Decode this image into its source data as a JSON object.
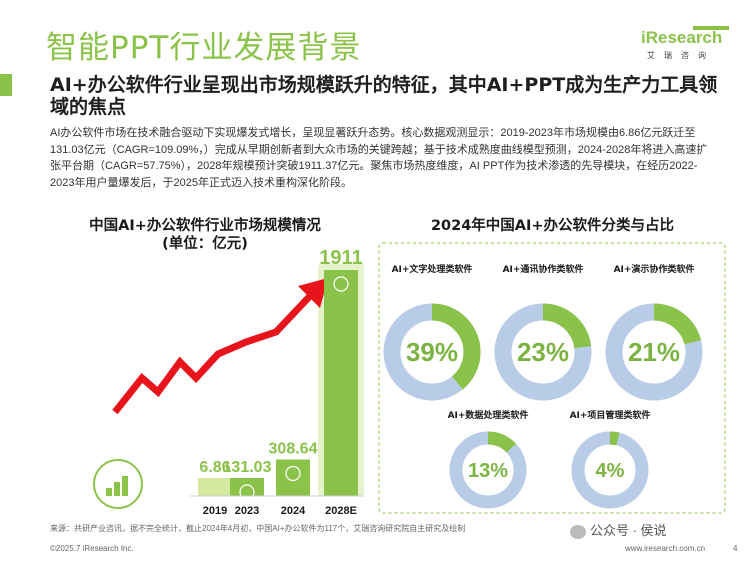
{
  "header": {
    "title": "智能PPT行业发展背景",
    "logo_name": "iResearch",
    "logo_sub": "艾瑞咨询"
  },
  "headline": "AI+办公软件行业呈现出市场规模跃升的特征，其中AI+PPT成为生产力工具领域的焦点",
  "body": "AI办公软件市场在技术融合驱动下实现爆发式增长，呈现显著跃升态势。核心数据观测显示：2019-2023年市场规模由6.86亿元跃迁至131.03亿元（CAGR=109.09%，）完成从早期创新者到大众市场的关键跨越；基于技术成熟度曲线模型预测，2024-2028年将进入高速扩张平台期（CAGR=57.75%），2028年规模预计突破1911.37亿元。聚焦市场热度维度，AI PPT作为技术渗透的先导模块，在经历2022-2023年用户量爆发后，于2025年正式迈入技术重构深化阶段。",
  "chart_data": [
    {
      "type": "bar",
      "title": "中国AI+办公软件行业市场规模情况",
      "subtitle": "(单位：亿元)",
      "categories": [
        "2019",
        "2023",
        "2024",
        "2028E"
      ],
      "values": [
        6.86,
        131.03,
        308.64,
        1911
      ],
      "value_labels": [
        "6.86",
        "131.03",
        "308.64",
        "1911"
      ],
      "ylim": [
        0,
        1911
      ],
      "grid": false,
      "colors": {
        "bar": "#8bc34a",
        "bar_light": "#cde59a",
        "arrow": "#e8141c"
      }
    },
    {
      "type": "pie",
      "title": "2024年中国AI+办公软件分类与占比",
      "slices": [
        {
          "label": "AI+文字处理类软件",
          "value": 39,
          "text": "39%"
        },
        {
          "label": "AI+通讯协作类软件",
          "value": 23,
          "text": "23%"
        },
        {
          "label": "AI+演示协作类软件",
          "value": 21,
          "text": "21%"
        },
        {
          "label": "AI+数据处理类软件",
          "value": 13,
          "text": "13%"
        },
        {
          "label": "AI+项目管理类软件",
          "value": 4,
          "text": "4%"
        }
      ],
      "colors": {
        "fill": "#8bc34a",
        "track": "#b8cce8",
        "text": "#7cb342"
      }
    }
  ],
  "footer": {
    "source": "来源：共研产业咨讯，据不完全统计，截止2024年4月初，中国AI+办公软件为117个，艾瑞咨询研究院自主研究及绘制",
    "copyright": "©2025.7 iResearch Inc.",
    "url": "www.iresearch.com.cn",
    "page": "4",
    "watermark": "公众号 · 侯说"
  }
}
